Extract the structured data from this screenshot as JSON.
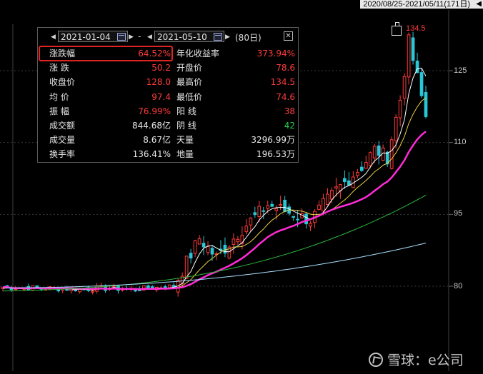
{
  "range_bar": {
    "text": "2020/08/25-2021/05/11(171日)"
  },
  "y_axis": {
    "ticks": [
      "125",
      "110",
      "95",
      "80"
    ]
  },
  "peak_label": "134.5",
  "panel": {
    "start_date": "2021-01-04",
    "separator": "-",
    "end_date": "2021-05-10",
    "days": "(80日)",
    "rows": [
      {
        "l1": "涨跌幅",
        "v1": "64.52%",
        "c1": "red",
        "l2": "年化收益率",
        "v2": "373.94%",
        "c2": "red"
      },
      {
        "l1": "涨  跌",
        "v1": "50.2",
        "c1": "red",
        "l2": "开盘价",
        "v2": "78.6",
        "c2": "red"
      },
      {
        "l1": "收盘价",
        "v1": "128.0",
        "c1": "red",
        "l2": "最高价",
        "v2": "134.5",
        "c2": "red"
      },
      {
        "l1": "均  价",
        "v1": "97.4",
        "c1": "red",
        "l2": "最低价",
        "v2": "74.6",
        "c2": "red"
      },
      {
        "l1": "振  幅",
        "v1": "76.99%",
        "c1": "red",
        "l2": "阳  线",
        "v2": "38",
        "c2": "red"
      },
      {
        "l1": "成交额",
        "v1": "844.68亿",
        "c1": "white",
        "l2": "阴  线",
        "v2": "42",
        "c2": "green"
      },
      {
        "l1": "成交量",
        "v1": "8.67亿",
        "c1": "white",
        "l2": "天量",
        "v2": "3296.99万",
        "c2": "white"
      },
      {
        "l1": "换手率",
        "v1": "136.41%",
        "c1": "white",
        "l2": "地量",
        "v2": "196.53万",
        "c2": "white"
      }
    ]
  },
  "watermark": "雪球：e公司",
  "colors": {
    "up": "#ff3b3b",
    "down": "#29c6d6",
    "ma_short": "#ffffff",
    "ma_yellow": "#e8d040",
    "ma_magenta": "#ff2bd6",
    "ma_green": "#2bb83a",
    "ma_lightblue": "#a8e0ff",
    "grid": "#3a3a3a"
  }
}
